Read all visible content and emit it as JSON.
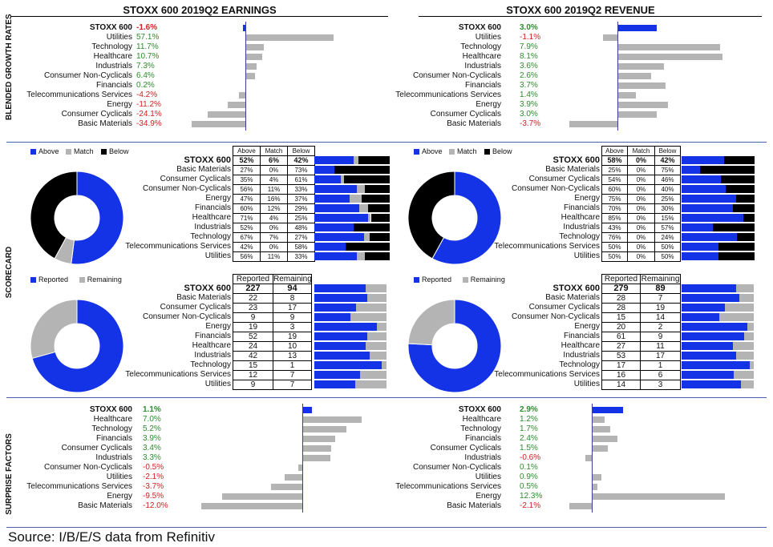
{
  "colors": {
    "blue": "#1432e6",
    "gray": "#b4b4b4",
    "black": "#000000",
    "green": "#2e8b2e",
    "red": "#d42020",
    "axis": "#3c3c9c"
  },
  "section_labels": {
    "growth": "BLENDED GROWTH RATES",
    "scorecard": "SCORECARD",
    "surprise": "SURPRISE FACTORS"
  },
  "source": "Source: I/B/E/S data from Refinitiv",
  "growth": {
    "earnings": {
      "title": "STOXX 600 2019Q2 EARNINGS",
      "rows": [
        {
          "name": "STOXX 600",
          "value": -1.6,
          "label": "-1.6%",
          "total": true
        },
        {
          "name": "Utilities",
          "value": 57.1,
          "label": "57.1%"
        },
        {
          "name": "Technology",
          "value": 11.7,
          "label": "11.7%"
        },
        {
          "name": "Healthcare",
          "value": 10.7,
          "label": "10.7%"
        },
        {
          "name": "Industrials",
          "value": 7.3,
          "label": "7.3%"
        },
        {
          "name": "Consumer Non-Cyclicals",
          "value": 6.4,
          "label": "6.4%"
        },
        {
          "name": "Financials",
          "value": 0.2,
          "label": "0.2%"
        },
        {
          "name": "Telecommunications Services",
          "value": -4.2,
          "label": "-4.2%"
        },
        {
          "name": "Energy",
          "value": -11.2,
          "label": "-11.2%"
        },
        {
          "name": "Consumer Cyclicals",
          "value": -24.1,
          "label": "-24.1%"
        },
        {
          "name": "Basic Materials",
          "value": -34.9,
          "label": "-34.9%"
        }
      ]
    },
    "revenue": {
      "title": "STOXX 600 2019Q2 REVENUE",
      "rows": [
        {
          "name": "STOXX 600",
          "value": 3.0,
          "label": "3.0%",
          "total": true
        },
        {
          "name": "Utilities",
          "value": -1.1,
          "label": "-1.1%"
        },
        {
          "name": "Technology",
          "value": 7.9,
          "label": "7.9%"
        },
        {
          "name": "Healthcare",
          "value": 8.1,
          "label": "8.1%"
        },
        {
          "name": "Industrials",
          "value": 3.6,
          "label": "3.6%"
        },
        {
          "name": "Consumer Non-Cyclicals",
          "value": 2.6,
          "label": "2.6%"
        },
        {
          "name": "Financials",
          "value": 3.7,
          "label": "3.7%"
        },
        {
          "name": "Telecommunications Services",
          "value": 1.4,
          "label": "1.4%"
        },
        {
          "name": "Energy",
          "value": 3.9,
          "label": "3.9%"
        },
        {
          "name": "Consumer Cyclicals",
          "value": 3.0,
          "label": "3.0%"
        },
        {
          "name": "Basic Materials",
          "value": -3.7,
          "label": "-3.7%"
        }
      ]
    }
  },
  "scorecard": {
    "legend": [
      "Above",
      "Match",
      "Below"
    ],
    "headers": [
      "Above",
      "Match",
      "Below"
    ],
    "earnings": {
      "donut": [
        52,
        6,
        42
      ],
      "rows": [
        {
          "name": "STOXX 600",
          "above": "52%",
          "match": "6%",
          "below": "42%",
          "v": [
            52,
            6,
            42
          ],
          "total": true
        },
        {
          "name": "Basic Materials",
          "above": "27%",
          "match": "0%",
          "below": "73%",
          "v": [
            27,
            0,
            73
          ]
        },
        {
          "name": "Consumer Cyclicals",
          "above": "35%",
          "match": "4%",
          "below": "61%",
          "v": [
            35,
            4,
            61
          ]
        },
        {
          "name": "Consumer Non-Cyclicals",
          "above": "56%",
          "match": "11%",
          "below": "33%",
          "v": [
            56,
            11,
            33
          ]
        },
        {
          "name": "Energy",
          "above": "47%",
          "match": "16%",
          "below": "37%",
          "v": [
            47,
            16,
            37
          ]
        },
        {
          "name": "Financials",
          "above": "60%",
          "match": "12%",
          "below": "29%",
          "v": [
            60,
            12,
            29
          ]
        },
        {
          "name": "Healthcare",
          "above": "71%",
          "match": "4%",
          "below": "25%",
          "v": [
            71,
            4,
            25
          ]
        },
        {
          "name": "Industrials",
          "above": "52%",
          "match": "0%",
          "below": "48%",
          "v": [
            52,
            0,
            48
          ]
        },
        {
          "name": "Technology",
          "above": "67%",
          "match": "7%",
          "below": "27%",
          "v": [
            67,
            7,
            27
          ]
        },
        {
          "name": "Telecommunications Services",
          "above": "42%",
          "match": "0%",
          "below": "58%",
          "v": [
            42,
            0,
            58
          ]
        },
        {
          "name": "Utilities",
          "above": "56%",
          "match": "11%",
          "below": "33%",
          "v": [
            56,
            11,
            33
          ]
        }
      ]
    },
    "revenue": {
      "donut": [
        58,
        0,
        42
      ],
      "rows": [
        {
          "name": "STOXX 600",
          "above": "58%",
          "match": "0%",
          "below": "42%",
          "v": [
            58,
            0,
            42
          ],
          "total": true
        },
        {
          "name": "Basic Materials",
          "above": "25%",
          "match": "0%",
          "below": "75%",
          "v": [
            25,
            0,
            75
          ]
        },
        {
          "name": "Consumer Cyclicals",
          "above": "54%",
          "match": "0%",
          "below": "46%",
          "v": [
            54,
            0,
            46
          ]
        },
        {
          "name": "Consumer Non-Cyclicals",
          "above": "60%",
          "match": "0%",
          "below": "40%",
          "v": [
            60,
            0,
            40
          ]
        },
        {
          "name": "Energy",
          "above": "75%",
          "match": "0%",
          "below": "25%",
          "v": [
            75,
            0,
            25
          ]
        },
        {
          "name": "Financials",
          "above": "70%",
          "match": "0%",
          "below": "30%",
          "v": [
            70,
            0,
            30
          ]
        },
        {
          "name": "Healthcare",
          "above": "85%",
          "match": "0%",
          "below": "15%",
          "v": [
            85,
            0,
            15
          ]
        },
        {
          "name": "Industrials",
          "above": "43%",
          "match": "0%",
          "below": "57%",
          "v": [
            43,
            0,
            57
          ]
        },
        {
          "name": "Technology",
          "above": "76%",
          "match": "0%",
          "below": "24%",
          "v": [
            76,
            0,
            24
          ]
        },
        {
          "name": "Telecommunications Services",
          "above": "50%",
          "match": "0%",
          "below": "50%",
          "v": [
            50,
            0,
            50
          ]
        },
        {
          "name": "Utilities",
          "above": "50%",
          "match": "0%",
          "below": "50%",
          "v": [
            50,
            0,
            50
          ]
        }
      ]
    }
  },
  "reported": {
    "legend": [
      "Reported",
      "Remaining"
    ],
    "headers": [
      "Reported",
      "Remaining"
    ],
    "earnings": {
      "rows": [
        {
          "name": "STOXX 600",
          "rep": 227,
          "rem": 94,
          "total": true
        },
        {
          "name": "Basic Materials",
          "rep": 22,
          "rem": 8
        },
        {
          "name": "Consumer Cyclicals",
          "rep": 23,
          "rem": 17
        },
        {
          "name": "Consumer Non-Cyclicals",
          "rep": 9,
          "rem": 9
        },
        {
          "name": "Energy",
          "rep": 19,
          "rem": 3
        },
        {
          "name": "Financials",
          "rep": 52,
          "rem": 19
        },
        {
          "name": "Healthcare",
          "rep": 24,
          "rem": 10
        },
        {
          "name": "Industrials",
          "rep": 42,
          "rem": 13
        },
        {
          "name": "Technology",
          "rep": 15,
          "rem": 1
        },
        {
          "name": "Telecommunications Services",
          "rep": 12,
          "rem": 7
        },
        {
          "name": "Utilities",
          "rep": 9,
          "rem": 7
        }
      ]
    },
    "revenue": {
      "rows": [
        {
          "name": "STOXX 600",
          "rep": 279,
          "rem": 89,
          "total": true
        },
        {
          "name": "Basic Materials",
          "rep": 28,
          "rem": 7
        },
        {
          "name": "Consumer Cyclicals",
          "rep": 28,
          "rem": 19
        },
        {
          "name": "Consumer Non-Cyclicals",
          "rep": 15,
          "rem": 14
        },
        {
          "name": "Energy",
          "rep": 20,
          "rem": 2
        },
        {
          "name": "Financials",
          "rep": 61,
          "rem": 9
        },
        {
          "name": "Healthcare",
          "rep": 27,
          "rem": 11
        },
        {
          "name": "Industrials",
          "rep": 53,
          "rem": 17
        },
        {
          "name": "Technology",
          "rep": 17,
          "rem": 1
        },
        {
          "name": "Telecommunications Services",
          "rep": 16,
          "rem": 6
        },
        {
          "name": "Utilities",
          "rep": 14,
          "rem": 3
        }
      ]
    }
  },
  "surprise": {
    "earnings": {
      "rows": [
        {
          "name": "STOXX 600",
          "value": 1.1,
          "label": "1.1%",
          "total": true
        },
        {
          "name": "Healthcare",
          "value": 7.0,
          "label": "7.0%"
        },
        {
          "name": "Technology",
          "value": 5.2,
          "label": "5.2%"
        },
        {
          "name": "Financials",
          "value": 3.9,
          "label": "3.9%"
        },
        {
          "name": "Consumer Cyclicals",
          "value": 3.4,
          "label": "3.4%"
        },
        {
          "name": "Industrials",
          "value": 3.3,
          "label": "3.3%"
        },
        {
          "name": "Consumer Non-Cyclicals",
          "value": -0.5,
          "label": "-0.5%"
        },
        {
          "name": "Utilities",
          "value": -2.1,
          "label": "-2.1%"
        },
        {
          "name": "Telecommunications Services",
          "value": -3.7,
          "label": "-3.7%"
        },
        {
          "name": "Energy",
          "value": -9.5,
          "label": "-9.5%"
        },
        {
          "name": "Basic Materials",
          "value": -12.0,
          "label": "-12.0%"
        }
      ]
    },
    "revenue": {
      "rows": [
        {
          "name": "STOXX 600",
          "value": 2.9,
          "label": "2.9%",
          "total": true
        },
        {
          "name": "Healthcare",
          "value": 1.2,
          "label": "1.2%"
        },
        {
          "name": "Technology",
          "value": 1.7,
          "label": "1.7%"
        },
        {
          "name": "Financials",
          "value": 2.4,
          "label": "2.4%"
        },
        {
          "name": "Consumer Cyclicals",
          "value": 1.5,
          "label": "1.5%"
        },
        {
          "name": "Industrials",
          "value": -0.6,
          "label": "-0.6%"
        },
        {
          "name": "Consumer Non-Cyclicals",
          "value": 0.1,
          "label": "0.1%"
        },
        {
          "name": "Utilities",
          "value": 0.9,
          "label": "0.9%"
        },
        {
          "name": "Telecommunications Services",
          "value": 0.5,
          "label": "0.5%"
        },
        {
          "name": "Energy",
          "value": 12.3,
          "label": "12.3%"
        },
        {
          "name": "Basic Materials",
          "value": -2.1,
          "label": "-2.1%"
        }
      ]
    }
  },
  "chart_data": [
    {
      "type": "bar",
      "title": "STOXX 600 2019Q2 EARNINGS",
      "categories": [
        "STOXX 600",
        "Utilities",
        "Technology",
        "Healthcare",
        "Industrials",
        "Consumer Non-Cyclicals",
        "Financials",
        "Telecommunications Services",
        "Energy",
        "Consumer Cyclicals",
        "Basic Materials"
      ],
      "values": [
        -1.6,
        57.1,
        11.7,
        10.7,
        7.3,
        6.4,
        0.2,
        -4.2,
        -11.2,
        -24.1,
        -34.9
      ]
    },
    {
      "type": "bar",
      "title": "STOXX 600 2019Q2 REVENUE",
      "categories": [
        "STOXX 600",
        "Utilities",
        "Technology",
        "Healthcare",
        "Industrials",
        "Consumer Non-Cyclicals",
        "Financials",
        "Telecommunications Services",
        "Energy",
        "Consumer Cyclicals",
        "Basic Materials"
      ],
      "values": [
        3.0,
        -1.1,
        7.9,
        8.1,
        3.6,
        2.6,
        3.7,
        1.4,
        3.9,
        3.0,
        -3.7
      ]
    },
    {
      "type": "pie",
      "series": [
        {
          "name": "Above",
          "values": [
            52
          ]
        },
        {
          "name": "Match",
          "values": [
            6
          ]
        },
        {
          "name": "Below",
          "values": [
            42
          ]
        }
      ]
    },
    {
      "type": "pie",
      "series": [
        {
          "name": "Above",
          "values": [
            58
          ]
        },
        {
          "name": "Match",
          "values": [
            0
          ]
        },
        {
          "name": "Below",
          "values": [
            42
          ]
        }
      ]
    },
    {
      "type": "pie",
      "series": [
        {
          "name": "Reported",
          "values": [
            227
          ]
        },
        {
          "name": "Remaining",
          "values": [
            94
          ]
        }
      ]
    },
    {
      "type": "pie",
      "series": [
        {
          "name": "Reported",
          "values": [
            279
          ]
        },
        {
          "name": "Remaining",
          "values": [
            89
          ]
        }
      ]
    },
    {
      "type": "bar",
      "categories": [
        "STOXX 600",
        "Healthcare",
        "Technology",
        "Financials",
        "Consumer Cyclicals",
        "Industrials",
        "Consumer Non-Cyclicals",
        "Utilities",
        "Telecommunications Services",
        "Energy",
        "Basic Materials"
      ],
      "values": [
        1.1,
        7.0,
        5.2,
        3.9,
        3.4,
        3.3,
        -0.5,
        -2.1,
        -3.7,
        -9.5,
        -12.0
      ]
    },
    {
      "type": "bar",
      "categories": [
        "STOXX 600",
        "Healthcare",
        "Technology",
        "Financials",
        "Consumer Cyclicals",
        "Industrials",
        "Consumer Non-Cyclicals",
        "Utilities",
        "Telecommunications Services",
        "Energy",
        "Basic Materials"
      ],
      "values": [
        2.9,
        1.2,
        1.7,
        2.4,
        1.5,
        -0.6,
        0.1,
        0.9,
        0.5,
        12.3,
        -2.1
      ]
    }
  ]
}
